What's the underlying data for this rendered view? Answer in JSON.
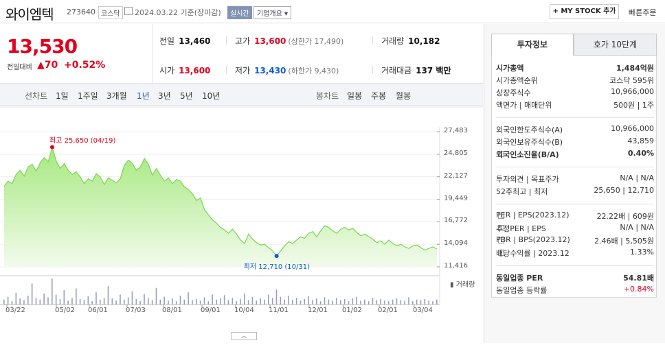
{
  "header": {
    "name": "와이엠텍",
    "code": "273640",
    "market": "코스닥",
    "date": "2024.03.22 기준(장마감)",
    "realtime": "실시간",
    "company_info": "기업개요 ▾",
    "mystock": "+ MY STOCK 추가",
    "quick_order": "빠른주문"
  },
  "price": {
    "current": "13,530",
    "diff_label": "전일대비",
    "diff": "▲70",
    "rate": "+0.52%"
  },
  "stats": {
    "prev_label": "전일",
    "prev": "13,460",
    "high_label": "고가",
    "high": "13,600",
    "upper": "(상한가 17,490)",
    "volume_label": "거래량",
    "volume": "10,182",
    "open_label": "시가",
    "open": "13,600",
    "low_label": "저가",
    "low": "13,430",
    "lower": "(하한가 9,430)",
    "amount_label": "거래대금",
    "amount": "137 백만"
  },
  "tabs": {
    "line_label": "선차트",
    "line": [
      "1일",
      "1주일",
      "3개월",
      "1년",
      "3년",
      "5년",
      "10년"
    ],
    "active": "1년",
    "candle_label": "봉차트",
    "candle": [
      "일봉",
      "주봉",
      "월봉"
    ]
  },
  "chart_data": {
    "type": "area",
    "y_ticks": [
      "27,483",
      "24,805",
      "22,127",
      "19,449",
      "16,772",
      "14,094",
      "11,416"
    ],
    "ylim": [
      11416,
      27483
    ],
    "x_ticks": [
      "03/22",
      "05/02",
      "06/01",
      "07/03",
      "08/01",
      "09/01",
      "10/04",
      "11/01",
      "12/01",
      "01/02",
      "02/01",
      "03/04"
    ],
    "high_note": "최고 25,650 (04/19)",
    "low_note": "최저 12,710 (10/31)",
    "volume_label": "거래량",
    "series_color": "#7ed957",
    "values": [
      21000,
      21600,
      21300,
      22400,
      22900,
      22200,
      23300,
      23600,
      22800,
      23800,
      24400,
      23900,
      25650,
      24000,
      23100,
      23700,
      22900,
      22400,
      22700,
      22100,
      21300,
      21900,
      21600,
      22500,
      22100,
      21200,
      22000,
      21700,
      21400,
      21900,
      23500,
      24100,
      23700,
      22900,
      23300,
      24300,
      23600,
      22300,
      23100,
      22300,
      21600,
      22000,
      21300,
      21800,
      21600,
      20900,
      20600,
      20100,
      19300,
      19600,
      18200,
      17600,
      17000,
      16600,
      16100,
      15800,
      15400,
      15900,
      15300,
      14600,
      14200,
      15300,
      14700,
      14300,
      14000,
      14100,
      13700,
      13300,
      12710,
      13300,
      13900,
      14400,
      14200,
      14600,
      15000,
      14800,
      15400,
      15600,
      15000,
      15700,
      16300,
      16100,
      15700,
      15400,
      15900,
      16100,
      15800,
      16000,
      15500,
      15100,
      15300,
      15000,
      14700,
      14300,
      14500,
      14100,
      14600,
      14200,
      13900,
      14100,
      13800,
      13600,
      13900,
      14000,
      13700,
      13400,
      13600,
      13800,
      13530
    ],
    "volume": [
      9,
      14,
      6,
      21,
      11,
      8,
      16,
      38,
      12,
      9,
      20,
      13,
      47,
      18,
      10,
      26,
      7,
      12,
      29,
      10,
      8,
      15,
      6,
      22,
      9,
      12,
      33,
      11,
      7,
      18,
      9,
      13,
      24,
      10,
      6,
      19,
      12,
      8,
      30,
      9,
      14,
      7,
      11,
      6,
      16,
      9,
      22,
      8,
      10,
      7,
      13,
      6,
      18,
      9,
      11,
      17,
      8,
      12,
      6,
      10,
      20,
      8,
      14,
      7,
      11,
      9,
      18,
      12,
      27,
      14,
      9,
      16,
      8,
      12,
      7,
      10,
      15,
      8,
      11,
      6,
      13,
      9,
      7,
      12,
      8,
      10,
      6,
      11,
      14,
      7,
      9,
      6,
      12,
      8,
      10,
      7,
      6,
      9,
      11,
      8,
      7,
      13,
      6,
      9,
      8,
      10,
      7,
      6,
      9
    ]
  },
  "sidebar": {
    "tab1": "투자정보",
    "tab2": "호가 10단계",
    "rows": [
      {
        "l": "시가총액",
        "v": "1,484억원",
        "bold": true
      },
      {
        "l": "시가총액순위",
        "v": "코스닥 595위"
      },
      {
        "l": "상장주식수",
        "v": "10,966,000"
      },
      {
        "l": "액면가 | 매매단위",
        "v": "500원 | 1주"
      },
      {
        "l": "외국인한도주식수(A)",
        "v": "10,966,000"
      },
      {
        "l": "외국인보유주식수(B)",
        "v": "43,859"
      },
      {
        "l": "외국인소진율(B/A)",
        "v": "0.40%",
        "bold": true,
        "q": true
      },
      {
        "l": "투자의견 | 목표주가",
        "v": "N/A | N/A"
      },
      {
        "l": "52주최고 | 최저",
        "v": "25,650 | 12,710"
      },
      {
        "l": "PER | EPS(2023.12)",
        "v": "22.22배 | 609원",
        "q": true
      },
      {
        "l": "추정PER | EPS",
        "v": "N/A | N/A",
        "q": true
      },
      {
        "l": "PBR | BPS(2023.12)",
        "v": "2.46배 | 5,505원",
        "q": true
      },
      {
        "l": "배당수익률 | 2023.12",
        "v": "1.33%",
        "q": true
      },
      {
        "l": "동일업종 PER",
        "v": "54.81배",
        "bold": true
      },
      {
        "l": "동일업종 등락률",
        "v": "+0.84%",
        "red": true
      }
    ]
  }
}
